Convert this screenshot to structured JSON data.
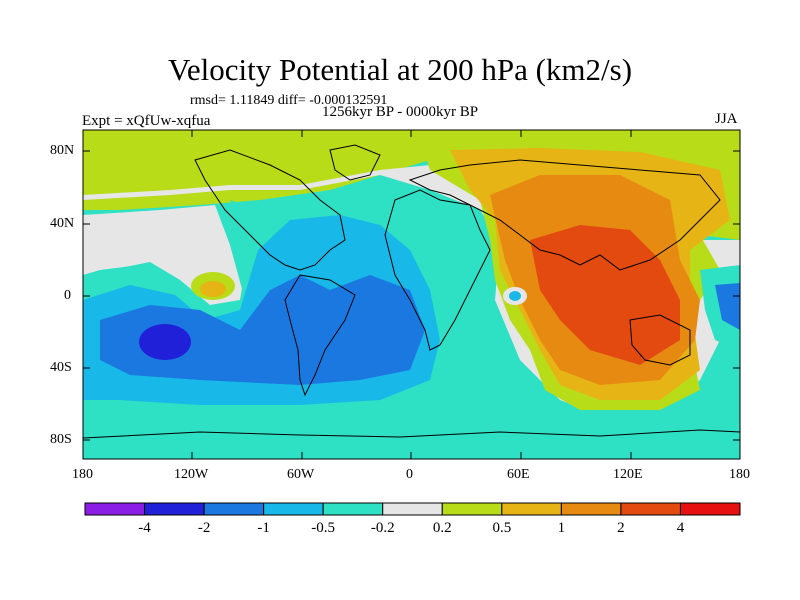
{
  "title": "Velocity Potential at 200 hPa (km2/s)",
  "stats": {
    "rmsd_label": "rmsd= 1.11849 diff= -0.000132591"
  },
  "experiment": {
    "label": "Expt = xQfUw-xqfua"
  },
  "period": {
    "label": "1256kyr BP - 0000kyr BP"
  },
  "season": {
    "label": "JJA"
  },
  "axes": {
    "lat_ticks": [
      "80N",
      "40N",
      "0",
      "40S",
      "80S"
    ],
    "lon_ticks": [
      "180",
      "120W",
      "60W",
      "0",
      "60E",
      "120E",
      "180"
    ]
  },
  "colorbar": {
    "labels": [
      "-4",
      "-2",
      "-1",
      "-0.5",
      "-0.2",
      "0.2",
      "0.5",
      "1",
      "2",
      "4"
    ],
    "colors": [
      "#8a1ee6",
      "#2020d8",
      "#1a78e0",
      "#18b8e8",
      "#2ee0c4",
      "#e6e6e6",
      "#b8dc18",
      "#e6b414",
      "#e68a12",
      "#e24a10",
      "#e61010"
    ]
  },
  "colors": {
    "background_band": "#b8dc18",
    "neutral": "#e6e6e6",
    "teal": "#2ee0c4",
    "light_blue": "#18b8e8",
    "blue": "#1a78e0",
    "dark_blue": "#2020d8",
    "yellow": "#e6b414",
    "orange": "#e68a12",
    "red_orange": "#e24a10"
  }
}
